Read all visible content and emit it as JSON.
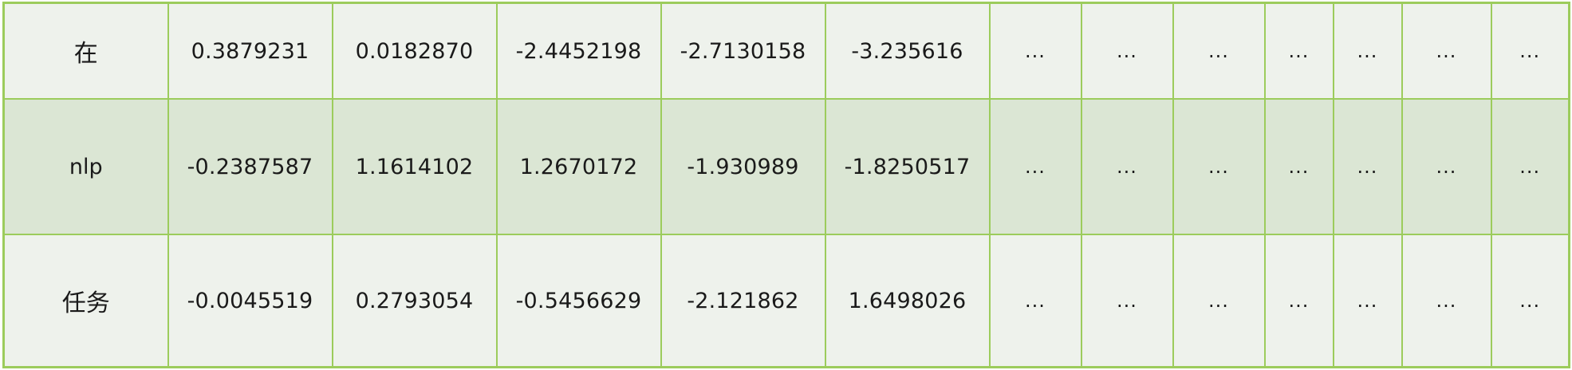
{
  "table": {
    "rows": [
      {
        "token": "在",
        "values": [
          "0.3879231",
          "0.0182870",
          "-2.4452198",
          "-2.7130158",
          "-3.235616"
        ],
        "ellipsis": [
          "...",
          "...",
          "...",
          "...",
          "...",
          "...",
          "..."
        ]
      },
      {
        "token": "nlp",
        "values": [
          "-0.2387587",
          "1.1614102",
          "1.2670172",
          "-1.930989",
          "-1.8250517"
        ],
        "ellipsis": [
          "...",
          "...",
          "...",
          "...",
          "...",
          "...",
          "..."
        ]
      },
      {
        "token": "任务",
        "values": [
          "-0.0045519",
          "0.2793054",
          "-0.5456629",
          "-2.121862",
          "1.6498026"
        ],
        "ellipsis": [
          "...",
          "...",
          "...",
          "...",
          "...",
          "...",
          "..."
        ]
      }
    ]
  },
  "colors": {
    "border": "#9ccc5c",
    "row_light": "#eef2ec",
    "row_highlight": "#dbe6d4",
    "text": "#1a1a1a"
  }
}
